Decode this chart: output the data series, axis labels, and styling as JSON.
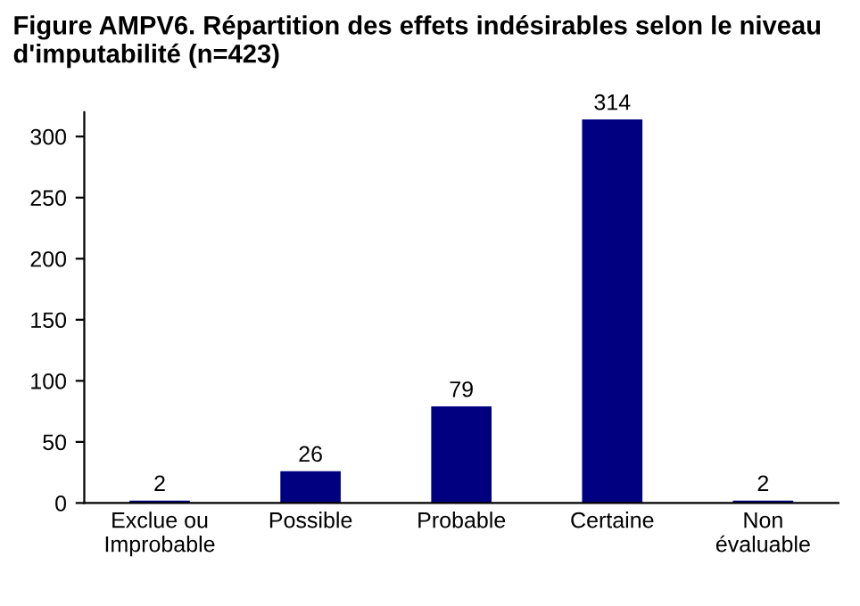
{
  "chart_data": {
    "type": "bar",
    "title": "Figure AMPV6. Répartition des effets indésirables selon le niveau d'imputabilité (n=423)",
    "categories": [
      "Exclue ou\nImprobable",
      "Possible",
      "Probable",
      "Certaine",
      "Non\névaluable"
    ],
    "values": [
      2,
      26,
      79,
      314,
      2
    ],
    "color": "#000080",
    "ylim": [
      0,
      320
    ],
    "yticks": [
      0,
      50,
      100,
      150,
      200,
      250,
      300
    ],
    "grid": false,
    "data_labels": true
  }
}
